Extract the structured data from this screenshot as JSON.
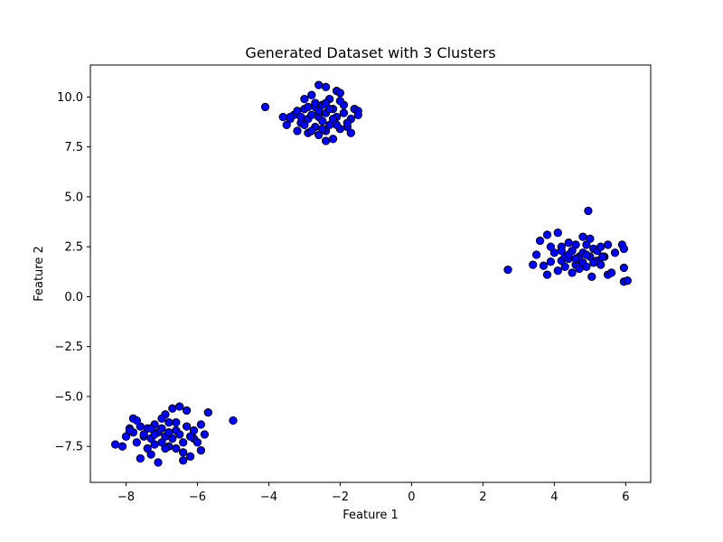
{
  "chart_data": {
    "type": "scatter",
    "title": "Generated Dataset with 3 Clusters",
    "xlabel": "Feature 1",
    "ylabel": "Feature 2",
    "xlim": [
      -9.0,
      6.7
    ],
    "ylim": [
      -9.3,
      11.6
    ],
    "xticks": [
      -8,
      -6,
      -4,
      -2,
      0,
      2,
      4,
      6
    ],
    "xtick_labels": [
      "−8",
      "−6",
      "−4",
      "−2",
      "0",
      "2",
      "4",
      "6"
    ],
    "yticks": [
      -7.5,
      -5.0,
      -2.5,
      0.0,
      2.5,
      5.0,
      7.5,
      10.0
    ],
    "ytick_labels": [
      "−7.5",
      "−5.0",
      "−2.5",
      "0.0",
      "2.5",
      "5.0",
      "7.5",
      "10.0"
    ],
    "grid": false,
    "legend": "none",
    "marker_fill": "#0000ff",
    "marker_edge": "#000000",
    "series": [
      {
        "points": [
          [
            -4.1,
            9.5
          ],
          [
            -3.6,
            9.0
          ],
          [
            -3.5,
            8.6
          ],
          [
            -3.4,
            8.9
          ],
          [
            -3.3,
            9.1
          ],
          [
            -3.2,
            8.3
          ],
          [
            -3.2,
            9.3
          ],
          [
            -3.1,
            8.7
          ],
          [
            -3.0,
            9.4
          ],
          [
            -3.0,
            9.9
          ],
          [
            -2.9,
            8.2
          ],
          [
            -2.9,
            8.9
          ],
          [
            -2.8,
            10.1
          ],
          [
            -2.8,
            9.1
          ],
          [
            -2.7,
            8.5
          ],
          [
            -2.7,
            9.5
          ],
          [
            -2.6,
            10.6
          ],
          [
            -2.6,
            8.1
          ],
          [
            -2.6,
            9.0
          ],
          [
            -2.5,
            9.6
          ],
          [
            -2.5,
            8.8
          ],
          [
            -2.4,
            10.5
          ],
          [
            -2.4,
            8.3
          ],
          [
            -2.4,
            9.2
          ],
          [
            -2.4,
            7.8
          ],
          [
            -2.3,
            9.9
          ],
          [
            -2.3,
            8.6
          ],
          [
            -2.2,
            9.4
          ],
          [
            -2.2,
            7.9
          ],
          [
            -2.1,
            10.3
          ],
          [
            -2.1,
            9.0
          ],
          [
            -2.0,
            8.4
          ],
          [
            -2.0,
            10.2
          ],
          [
            -1.9,
            9.2
          ],
          [
            -1.9,
            9.6
          ],
          [
            -1.8,
            8.5
          ],
          [
            -1.7,
            8.9
          ],
          [
            -1.7,
            8.2
          ],
          [
            -1.6,
            9.4
          ],
          [
            -1.5,
            9.3
          ],
          [
            -1.5,
            9.1
          ],
          [
            -3.0,
            8.6
          ],
          [
            -2.8,
            8.3
          ],
          [
            -2.7,
            9.7
          ],
          [
            -2.5,
            8.4
          ],
          [
            -2.3,
            9.4
          ],
          [
            -2.2,
            8.9
          ],
          [
            -2.0,
            9.8
          ],
          [
            -1.8,
            8.7
          ],
          [
            -3.4,
            9.0
          ],
          [
            -2.6,
            9.3
          ],
          [
            -2.9,
            9.5
          ],
          [
            -2.4,
            9.7
          ],
          [
            -2.1,
            8.6
          ],
          [
            -3.1,
            9.0
          ]
        ]
      },
      {
        "points": [
          [
            2.7,
            1.35
          ],
          [
            3.4,
            1.6
          ],
          [
            3.5,
            2.1
          ],
          [
            3.6,
            2.8
          ],
          [
            3.7,
            1.55
          ],
          [
            3.8,
            1.1
          ],
          [
            3.8,
            3.1
          ],
          [
            3.9,
            2.5
          ],
          [
            3.9,
            1.75
          ],
          [
            4.0,
            2.2
          ],
          [
            4.1,
            1.3
          ],
          [
            4.1,
            3.2
          ],
          [
            4.2,
            1.8
          ],
          [
            4.2,
            2.5
          ],
          [
            4.3,
            2.0
          ],
          [
            4.3,
            1.5
          ],
          [
            4.4,
            2.7
          ],
          [
            4.4,
            1.9
          ],
          [
            4.5,
            2.3
          ],
          [
            4.5,
            1.2
          ],
          [
            4.6,
            2.6
          ],
          [
            4.6,
            1.6
          ],
          [
            4.7,
            2.0
          ],
          [
            4.7,
            1.4
          ],
          [
            4.8,
            3.0
          ],
          [
            4.8,
            2.2
          ],
          [
            4.8,
            1.7
          ],
          [
            4.9,
            2.6
          ],
          [
            4.9,
            1.5
          ],
          [
            4.95,
            4.3
          ],
          [
            5.0,
            2.0
          ],
          [
            5.0,
            2.9
          ],
          [
            5.05,
            1.0
          ],
          [
            5.1,
            2.4
          ],
          [
            5.2,
            1.8
          ],
          [
            5.2,
            2.3
          ],
          [
            5.3,
            1.6
          ],
          [
            5.3,
            2.5
          ],
          [
            5.4,
            2.0
          ],
          [
            5.5,
            1.1
          ],
          [
            5.5,
            2.6
          ],
          [
            5.6,
            1.2
          ],
          [
            5.7,
            2.2
          ],
          [
            5.9,
            2.6
          ],
          [
            5.95,
            2.4
          ],
          [
            5.95,
            1.45
          ],
          [
            5.95,
            0.75
          ],
          [
            6.05,
            0.8
          ],
          [
            4.4,
            2.1
          ],
          [
            4.6,
            1.9
          ],
          [
            5.1,
            1.7
          ],
          [
            4.2,
            2.3
          ],
          [
            4.9,
            2.1
          ],
          [
            5.35,
            2.0
          ]
        ]
      },
      {
        "points": [
          [
            -8.3,
            -7.4
          ],
          [
            -8.1,
            -7.5
          ],
          [
            -8.0,
            -7.0
          ],
          [
            -7.9,
            -6.6
          ],
          [
            -7.8,
            -6.1
          ],
          [
            -7.8,
            -6.8
          ],
          [
            -7.7,
            -7.3
          ],
          [
            -7.6,
            -6.5
          ],
          [
            -7.6,
            -8.1
          ],
          [
            -7.5,
            -7.0
          ],
          [
            -7.4,
            -7.6
          ],
          [
            -7.4,
            -6.6
          ],
          [
            -7.3,
            -7.9
          ],
          [
            -7.3,
            -7.1
          ],
          [
            -7.2,
            -6.4
          ],
          [
            -7.2,
            -7.4
          ],
          [
            -7.1,
            -6.8
          ],
          [
            -7.1,
            -8.3
          ],
          [
            -7.0,
            -7.3
          ],
          [
            -7.0,
            -6.6
          ],
          [
            -6.9,
            -5.9
          ],
          [
            -6.9,
            -7.0
          ],
          [
            -6.8,
            -7.5
          ],
          [
            -6.8,
            -6.3
          ],
          [
            -6.7,
            -5.6
          ],
          [
            -6.7,
            -7.1
          ],
          [
            -6.6,
            -6.7
          ],
          [
            -6.6,
            -7.6
          ],
          [
            -6.5,
            -5.5
          ],
          [
            -6.5,
            -6.9
          ],
          [
            -6.4,
            -7.3
          ],
          [
            -6.4,
            -8.2
          ],
          [
            -6.3,
            -6.5
          ],
          [
            -6.3,
            -5.7
          ],
          [
            -6.2,
            -8.0
          ],
          [
            -6.1,
            -7.1
          ],
          [
            -6.1,
            -6.7
          ],
          [
            -6.0,
            -7.3
          ],
          [
            -5.9,
            -6.4
          ],
          [
            -5.9,
            -7.7
          ],
          [
            -5.8,
            -6.9
          ],
          [
            -5.7,
            -5.8
          ],
          [
            -5.0,
            -6.2
          ],
          [
            -7.9,
            -6.7
          ],
          [
            -7.5,
            -6.9
          ],
          [
            -7.2,
            -6.9
          ],
          [
            -6.9,
            -7.6
          ],
          [
            -6.6,
            -6.3
          ],
          [
            -6.4,
            -7.8
          ],
          [
            -7.7,
            -6.2
          ],
          [
            -7.0,
            -6.1
          ],
          [
            -6.8,
            -6.8
          ],
          [
            -6.2,
            -7.0
          ],
          [
            -7.3,
            -6.6
          ]
        ]
      }
    ]
  }
}
